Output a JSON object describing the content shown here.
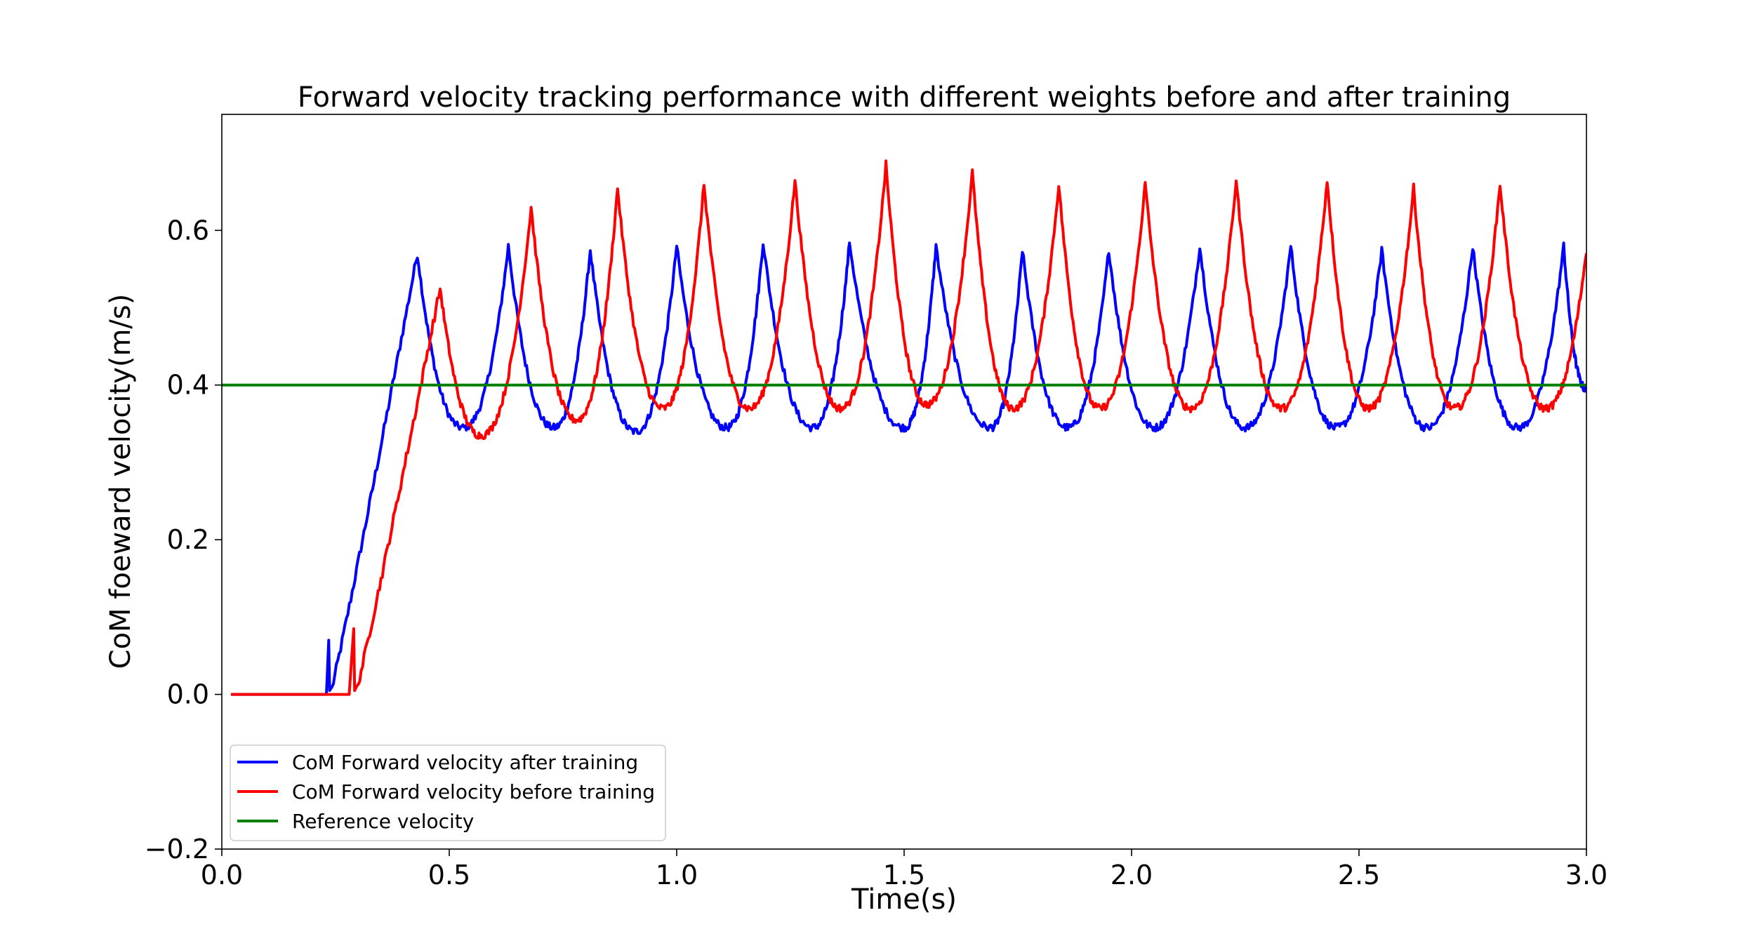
{
  "chart_data": {
    "type": "line",
    "title": "Forward velocity tracking performance with different weights before and after training",
    "xlabel": "Time(s)",
    "ylabel": "CoM foeward velocity(m/s)",
    "xlim": [
      0.0,
      3.0
    ],
    "ylim": [
      -0.2,
      0.75
    ],
    "x_ticks": [
      0.0,
      0.5,
      1.0,
      1.5,
      2.0,
      2.5,
      3.0
    ],
    "x_tick_labels": [
      "0.0",
      "0.5",
      "1.0",
      "1.5",
      "2.0",
      "2.5",
      "3.0"
    ],
    "y_ticks": [
      -0.2,
      0.0,
      0.2,
      0.4,
      0.6
    ],
    "y_tick_labels": [
      "−0.2",
      "0.0",
      "0.2",
      "0.4",
      "0.6"
    ],
    "grid": false,
    "legend_position": "lower-left",
    "series": [
      {
        "name": "CoM Forward velocity after training",
        "color": "#0000ff",
        "startup": {
          "flat_until": 0.23,
          "spike_t": 0.235,
          "spike_v": 0.07,
          "rise_end_t": 0.41
        },
        "peaks": [
          {
            "t": 0.43,
            "v": 0.57
          },
          {
            "t": 0.63,
            "v": 0.58
          },
          {
            "t": 0.81,
            "v": 0.575
          },
          {
            "t": 1.0,
            "v": 0.58
          },
          {
            "t": 1.19,
            "v": 0.585
          },
          {
            "t": 1.38,
            "v": 0.585
          },
          {
            "t": 1.57,
            "v": 0.58
          },
          {
            "t": 1.76,
            "v": 0.575
          },
          {
            "t": 1.95,
            "v": 0.575
          },
          {
            "t": 2.15,
            "v": 0.58
          },
          {
            "t": 2.35,
            "v": 0.58
          },
          {
            "t": 2.55,
            "v": 0.575
          },
          {
            "t": 2.75,
            "v": 0.58
          },
          {
            "t": 2.95,
            "v": 0.58
          }
        ],
        "troughs": [
          {
            "t": 0.53,
            "v": 0.345
          },
          {
            "t": 0.73,
            "v": 0.345
          },
          {
            "t": 0.91,
            "v": 0.34
          },
          {
            "t": 1.11,
            "v": 0.345
          },
          {
            "t": 1.3,
            "v": 0.345
          },
          {
            "t": 1.5,
            "v": 0.345
          },
          {
            "t": 1.69,
            "v": 0.345
          },
          {
            "t": 1.86,
            "v": 0.345
          },
          {
            "t": 2.05,
            "v": 0.345
          },
          {
            "t": 2.25,
            "v": 0.345
          },
          {
            "t": 2.45,
            "v": 0.345
          },
          {
            "t": 2.65,
            "v": 0.345
          },
          {
            "t": 2.85,
            "v": 0.345
          }
        ],
        "end": {
          "t": 3.0,
          "v": 0.395
        }
      },
      {
        "name": "CoM Forward velocity before training",
        "color": "#ff0000",
        "startup": {
          "flat_until": 0.28,
          "spike_t": 0.29,
          "spike_v": 0.085,
          "rise_end_t": 0.47
        },
        "peaks": [
          {
            "t": 0.48,
            "v": 0.525
          },
          {
            "t": 0.68,
            "v": 0.63
          },
          {
            "t": 0.87,
            "v": 0.655
          },
          {
            "t": 1.06,
            "v": 0.66
          },
          {
            "t": 1.26,
            "v": 0.665
          },
          {
            "t": 1.46,
            "v": 0.685
          },
          {
            "t": 1.65,
            "v": 0.675
          },
          {
            "t": 1.84,
            "v": 0.66
          },
          {
            "t": 2.03,
            "v": 0.66
          },
          {
            "t": 2.23,
            "v": 0.665
          },
          {
            "t": 2.43,
            "v": 0.665
          },
          {
            "t": 2.62,
            "v": 0.655
          },
          {
            "t": 2.81,
            "v": 0.66
          }
        ],
        "troughs": [
          {
            "t": 0.57,
            "v": 0.335
          },
          {
            "t": 0.78,
            "v": 0.355
          },
          {
            "t": 0.97,
            "v": 0.37
          },
          {
            "t": 1.16,
            "v": 0.37
          },
          {
            "t": 1.36,
            "v": 0.37
          },
          {
            "t": 1.55,
            "v": 0.375
          },
          {
            "t": 1.74,
            "v": 0.37
          },
          {
            "t": 1.93,
            "v": 0.37
          },
          {
            "t": 2.13,
            "v": 0.37
          },
          {
            "t": 2.33,
            "v": 0.37
          },
          {
            "t": 2.52,
            "v": 0.37
          },
          {
            "t": 2.71,
            "v": 0.37
          },
          {
            "t": 2.91,
            "v": 0.37
          }
        ],
        "end": {
          "t": 3.0,
          "v": 0.575
        }
      },
      {
        "name": "Reference velocity",
        "color": "#008000",
        "x": [
          0.0,
          3.0
        ],
        "y": [
          0.4,
          0.4
        ]
      }
    ]
  }
}
